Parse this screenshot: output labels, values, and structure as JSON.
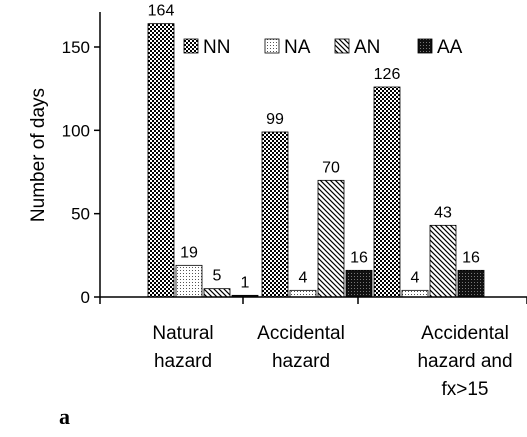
{
  "chart_data": {
    "type": "bar",
    "panel_label": "a",
    "ylabel": "Number of days",
    "xlabel": "",
    "ylim": [
      0,
      180
    ],
    "yticks": [
      0,
      50,
      100,
      150
    ],
    "categories": [
      [
        "Natural",
        "hazard"
      ],
      [
        "Accidental",
        "hazard"
      ],
      [
        "Accidental",
        "hazard and",
        "fx>15"
      ]
    ],
    "series": [
      {
        "name": "NN",
        "values": [
          164,
          99,
          126
        ],
        "pattern": "checker"
      },
      {
        "name": "NA",
        "values": [
          19,
          4,
          4
        ],
        "pattern": "dots"
      },
      {
        "name": "AN",
        "values": [
          5,
          70,
          43
        ],
        "pattern": "diagonal"
      },
      {
        "name": "AA",
        "values": [
          1,
          16,
          16
        ],
        "pattern": "dark"
      }
    ],
    "legend_position": "top-right",
    "grid": false
  }
}
